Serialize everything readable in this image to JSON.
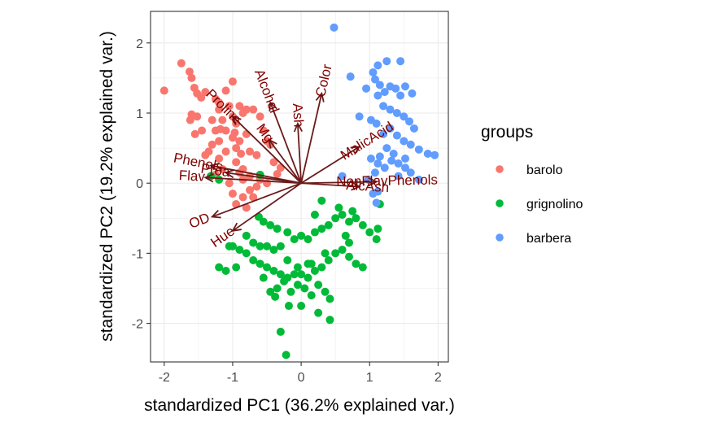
{
  "chart_data": {
    "type": "scatter",
    "xlabel": "standardized PC1 (36.2% explained var.)",
    "ylabel": "standardized PC2 (19.2% explained var.)",
    "xlim": [
      -2.2,
      2.15
    ],
    "ylim": [
      -2.55,
      2.45
    ],
    "xticks": [
      -2,
      -1,
      0,
      1,
      2
    ],
    "yticks": [
      -2,
      -1,
      0,
      1,
      2
    ],
    "grid": true,
    "legend": {
      "title": "groups",
      "position": "right"
    },
    "series": [
      {
        "name": "barolo",
        "color": "#F8766D",
        "points": [
          [
            -2.0,
            1.32
          ],
          [
            -1.75,
            1.71
          ],
          [
            -1.63,
            1.59
          ],
          [
            -1.6,
            1.5
          ],
          [
            -1.56,
            1.36
          ],
          [
            -1.52,
            1.28
          ],
          [
            -1.46,
            1.22
          ],
          [
            -1.4,
            1.3
          ],
          [
            -1.52,
            0.95
          ],
          [
            -1.6,
            0.98
          ],
          [
            -1.55,
            0.7
          ],
          [
            -1.62,
            0.9
          ],
          [
            -1.45,
            0.75
          ],
          [
            -1.3,
            0.9
          ],
          [
            -1.25,
            1.2
          ],
          [
            -1.2,
            1.05
          ],
          [
            -1.15,
            0.9
          ],
          [
            -1.1,
            0.75
          ],
          [
            -1.05,
            1.1
          ],
          [
            -1.0,
            0.95
          ],
          [
            -0.95,
            0.85
          ],
          [
            -0.9,
            1.1
          ],
          [
            -0.88,
            0.42
          ],
          [
            -0.85,
            1.0
          ],
          [
            -0.8,
            0.7
          ],
          [
            -0.75,
            0.45
          ],
          [
            -0.7,
            1.05
          ],
          [
            -0.65,
            0.4
          ],
          [
            -0.6,
            0.95
          ],
          [
            -0.55,
            0.75
          ],
          [
            -0.5,
            0.6
          ],
          [
            -0.45,
            0.55
          ],
          [
            -0.4,
            0.3
          ],
          [
            -1.4,
            0.4
          ],
          [
            -1.35,
            0.45
          ],
          [
            -1.2,
            0.35
          ],
          [
            -1.0,
            0.65
          ],
          [
            -0.95,
            0.3
          ],
          [
            -0.9,
            0.15
          ],
          [
            -0.85,
            0.05
          ],
          [
            -0.75,
            0.1
          ],
          [
            -0.6,
            0.05
          ],
          [
            -0.5,
            0.0
          ],
          [
            -0.3,
            0.22
          ],
          [
            -1.25,
            0.12
          ],
          [
            -1.15,
            0.2
          ],
          [
            -1.05,
            0.0
          ],
          [
            -1.0,
            -0.15
          ],
          [
            -0.95,
            -0.3
          ],
          [
            -0.85,
            -0.2
          ],
          [
            -0.8,
            -0.35
          ],
          [
            -0.75,
            -0.1
          ],
          [
            -0.7,
            -0.2
          ],
          [
            -0.65,
            -0.05
          ],
          [
            -1.3,
            0.55
          ],
          [
            -1.1,
            0.45
          ],
          [
            -0.95,
            0.5
          ],
          [
            -1.25,
            0.75
          ],
          [
            -1.2,
            0.6
          ],
          [
            -0.85,
            0.2
          ],
          [
            -1.0,
            1.45
          ],
          [
            -1.2,
            1.15
          ],
          [
            -1.1,
            1.32
          ],
          [
            -0.97,
            0.72
          ],
          [
            -0.9,
            0.6
          ],
          [
            -0.8,
            1.05
          ],
          [
            -0.35,
            0.13
          ],
          [
            -1.18,
            0.77
          ]
        ]
      },
      {
        "name": "grignolino",
        "color": "#00BA38",
        "points": [
          [
            -0.62,
            -0.48
          ],
          [
            -0.55,
            -0.55
          ],
          [
            -0.45,
            -0.6
          ],
          [
            -0.35,
            -0.65
          ],
          [
            -0.8,
            -0.75
          ],
          [
            -0.7,
            -0.85
          ],
          [
            -0.6,
            -0.9
          ],
          [
            -0.5,
            -0.9
          ],
          [
            -0.4,
            -0.95
          ],
          [
            -0.3,
            -0.9
          ],
          [
            -0.2,
            -0.7
          ],
          [
            -0.1,
            -0.8
          ],
          [
            0.0,
            -0.75
          ],
          [
            0.1,
            -0.8
          ],
          [
            0.2,
            -0.7
          ],
          [
            0.3,
            -0.65
          ],
          [
            0.4,
            -0.6
          ],
          [
            0.5,
            -0.5
          ],
          [
            0.6,
            -0.45
          ],
          [
            0.7,
            -0.55
          ],
          [
            0.8,
            -0.5
          ],
          [
            0.9,
            -0.6
          ],
          [
            1.0,
            -0.7
          ],
          [
            1.1,
            -0.8
          ],
          [
            -1.0,
            -0.9
          ],
          [
            -0.9,
            -0.95
          ],
          [
            -0.8,
            -1.0
          ],
          [
            -0.7,
            -1.1
          ],
          [
            -0.6,
            -1.15
          ],
          [
            -0.5,
            -1.2
          ],
          [
            -0.4,
            -1.25
          ],
          [
            -0.3,
            -1.3
          ],
          [
            -0.2,
            -1.35
          ],
          [
            -0.1,
            -1.3
          ],
          [
            0.0,
            -1.3
          ],
          [
            0.1,
            -1.35
          ],
          [
            0.2,
            -1.25
          ],
          [
            0.3,
            -1.2
          ],
          [
            0.4,
            -1.1
          ],
          [
            0.5,
            -1.0
          ],
          [
            0.6,
            -0.95
          ],
          [
            0.7,
            -1.05
          ],
          [
            0.8,
            -1.15
          ],
          [
            0.9,
            -1.2
          ],
          [
            -1.2,
            -1.2
          ],
          [
            -1.1,
            -1.25
          ],
          [
            -0.55,
            -1.35
          ],
          [
            -0.45,
            -1.55
          ],
          [
            -0.35,
            -1.5
          ],
          [
            -0.25,
            -1.4
          ],
          [
            -0.15,
            -1.55
          ],
          [
            -0.05,
            -1.45
          ],
          [
            0.05,
            -1.5
          ],
          [
            0.15,
            -1.6
          ],
          [
            0.25,
            -1.45
          ],
          [
            0.35,
            -1.55
          ],
          [
            0.42,
            -1.65
          ],
          [
            0.0,
            -1.75
          ],
          [
            0.25,
            -1.85
          ],
          [
            0.42,
            -1.95
          ],
          [
            -0.18,
            -1.75
          ],
          [
            -0.38,
            -1.62
          ],
          [
            -0.3,
            -2.12
          ],
          [
            -0.22,
            -2.45
          ],
          [
            -1.32,
            0.1
          ],
          [
            -1.2,
            0.05
          ],
          [
            0.3,
            -0.25
          ],
          [
            0.2,
            -0.45
          ],
          [
            0.55,
            -0.35
          ],
          [
            0.75,
            -0.4
          ],
          [
            1.12,
            -0.65
          ],
          [
            1.15,
            -0.3
          ],
          [
            -1.05,
            -0.9
          ],
          [
            -0.95,
            -1.2
          ],
          [
            0.65,
            -0.75
          ],
          [
            -0.2,
            -1.1
          ],
          [
            0.15,
            -1.15
          ],
          [
            -0.05,
            -1.2
          ],
          [
            0.35,
            -1.0
          ],
          [
            0.7,
            -0.85
          ],
          [
            -0.6,
            0.12
          ],
          [
            0.1,
            -1.15
          ]
        ]
      },
      {
        "name": "barbera",
        "color": "#619CFF",
        "points": [
          [
            0.48,
            2.22
          ],
          [
            0.72,
            1.52
          ],
          [
            0.95,
            1.35
          ],
          [
            1.05,
            1.58
          ],
          [
            1.12,
            1.68
          ],
          [
            1.25,
            1.74
          ],
          [
            1.45,
            1.74
          ],
          [
            1.08,
            1.48
          ],
          [
            1.15,
            1.4
          ],
          [
            1.22,
            1.3
          ],
          [
            1.3,
            1.38
          ],
          [
            1.38,
            1.35
          ],
          [
            1.45,
            1.25
          ],
          [
            1.52,
            1.38
          ],
          [
            1.62,
            1.28
          ],
          [
            1.12,
            1.25
          ],
          [
            1.2,
            1.1
          ],
          [
            1.3,
            1.05
          ],
          [
            1.4,
            1.0
          ],
          [
            1.5,
            0.95
          ],
          [
            1.58,
            0.88
          ],
          [
            1.65,
            0.78
          ],
          [
            0.85,
            0.95
          ],
          [
            1.02,
            0.9
          ],
          [
            1.1,
            0.85
          ],
          [
            1.2,
            0.7
          ],
          [
            1.3,
            0.78
          ],
          [
            1.4,
            0.68
          ],
          [
            1.5,
            0.6
          ],
          [
            1.6,
            0.55
          ],
          [
            1.72,
            0.48
          ],
          [
            1.85,
            0.42
          ],
          [
            1.95,
            0.4
          ],
          [
            1.02,
            0.35
          ],
          [
            1.12,
            0.28
          ],
          [
            1.22,
            0.22
          ],
          [
            1.32,
            0.32
          ],
          [
            1.42,
            0.28
          ],
          [
            1.52,
            0.22
          ],
          [
            1.6,
            0.15
          ],
          [
            1.72,
            0.05
          ],
          [
            1.35,
            0.42
          ],
          [
            1.25,
            0.5
          ],
          [
            1.15,
            0.38
          ],
          [
            1.08,
            0.15
          ],
          [
            0.98,
            0.05
          ],
          [
            1.05,
            -0.15
          ],
          [
            1.12,
            -0.12
          ],
          [
            1.1,
            -0.28
          ],
          [
            0.6,
            0.1
          ],
          [
            1.42,
            0.1
          ],
          [
            1.52,
            0.35
          ]
        ]
      }
    ],
    "arrows": [
      {
        "name": "Alcohol",
        "x": -0.45,
        "y": 1.15
      },
      {
        "name": "Color",
        "x": 0.3,
        "y": 1.28
      },
      {
        "name": "Ash",
        "x": -0.05,
        "y": 0.85
      },
      {
        "name": "Proline",
        "x": -1.0,
        "y": 0.95
      },
      {
        "name": "Mg",
        "x": -0.47,
        "y": 0.62
      },
      {
        "name": "MalicAcid",
        "x": 0.85,
        "y": 0.52
      },
      {
        "name": "Phenols",
        "x": -1.32,
        "y": 0.25
      },
      {
        "name": "Proa",
        "x": -1.1,
        "y": 0.15
      },
      {
        "name": "Flav",
        "x": -1.4,
        "y": 0.08
      },
      {
        "name": "OD",
        "x": -1.3,
        "y": -0.48
      },
      {
        "name": "Hue",
        "x": -1.0,
        "y": -0.68
      },
      {
        "name": "AlcAsh",
        "x": 0.85,
        "y": -0.05
      },
      {
        "name": "NonFlavPhenols",
        "x": 1.1,
        "y": 0.02
      }
    ]
  }
}
